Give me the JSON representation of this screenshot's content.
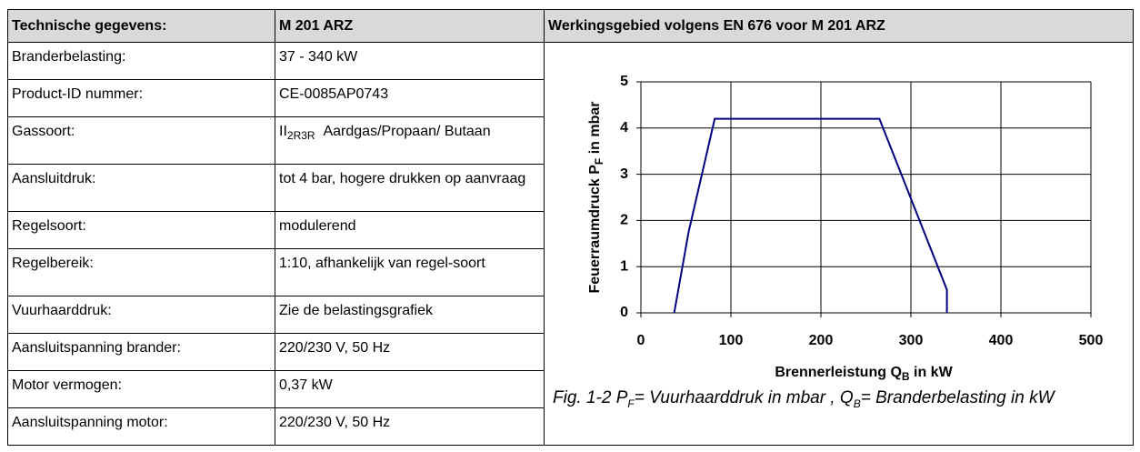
{
  "table": {
    "header": [
      "Technische gegevens:",
      "M 201 ARZ",
      "Werkingsgebied volgens EN 676 voor M 201 ARZ"
    ],
    "rows": [
      [
        "Branderbelasting:",
        "37 - 340 kW"
      ],
      [
        "Product-ID nummer:",
        "CE-0085AP0743"
      ],
      [
        "Gassoort:",
        [
          "II",
          "2R3R",
          "Aardgas/Propaan/ Butaan"
        ]
      ],
      [
        "Aansluitdruk:",
        "tot 4 bar, hogere drukken op aanvraag"
      ],
      [
        "Regelsoort:",
        "modulerend"
      ],
      [
        "Regelbereik:",
        "1:10, afhankelijk van regel-soort"
      ],
      [
        "Vuurhaarddruk:",
        "Zie de belastingsgrafiek"
      ],
      [
        "Aansluitspanning brander:",
        "220/230 V, 50 Hz"
      ],
      [
        "Motor vermogen:",
        "0,37 kW"
      ],
      [
        "Aansluitspanning motor:",
        "220/230 V, 50 Hz"
      ]
    ]
  },
  "chart_data": {
    "type": "line",
    "x_label": [
      "Brennerleistung Q",
      "B",
      " in kW"
    ],
    "y_label": [
      "Feuerraumdruck P",
      "F",
      " in mbar"
    ],
    "x": [
      37,
      53,
      82,
      265,
      340,
      340
    ],
    "series": [
      {
        "color": "#000080",
        "values": [
          0,
          1.75,
          4.2,
          4.2,
          0.5,
          0
        ]
      }
    ],
    "xlim": [
      0,
      500
    ],
    "ylim": [
      0,
      5
    ],
    "xticks": [
      0,
      100,
      200,
      300,
      400,
      500
    ],
    "yticks": [
      0,
      1,
      2,
      3,
      4,
      5
    ],
    "grid": true
  },
  "caption": [
    "Fig. 1-2 P",
    "F",
    "= Vuurhaarddruk in mbar , Q",
    "B",
    "= Branderbelasting in kW"
  ]
}
